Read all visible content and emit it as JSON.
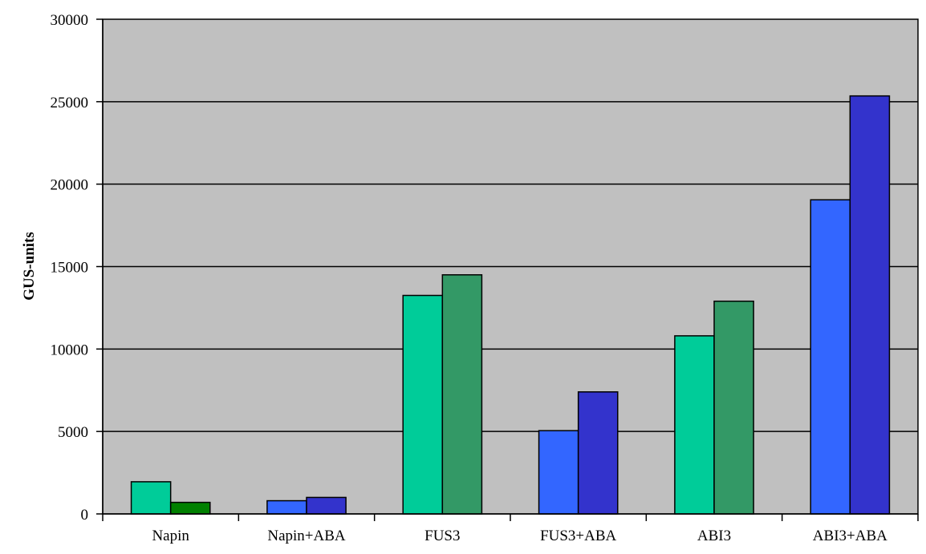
{
  "chart_data": {
    "type": "bar",
    "title": "",
    "xlabel": "",
    "ylabel": "GUS-units",
    "ylim": [
      0,
      30000
    ],
    "yticks": [
      0,
      5000,
      10000,
      15000,
      20000,
      25000,
      30000
    ],
    "grid": true,
    "legend": "none",
    "plot_background": "#c0c0c0",
    "categories": [
      "Napin",
      "Napin+ABA",
      "FUS3",
      "FUS3+ABA",
      "ABI3",
      "ABI3+ABA"
    ],
    "series": [
      {
        "values": [
          1950,
          800,
          13250,
          5050,
          10800,
          19050
        ]
      },
      {
        "values": [
          700,
          1000,
          14500,
          7400,
          12900,
          25350
        ]
      }
    ],
    "bar_colors": [
      [
        "#00cc99",
        "#008000"
      ],
      [
        "#3366ff",
        "#3333cc"
      ],
      [
        "#00cc99",
        "#339966"
      ],
      [
        "#3366ff",
        "#3333cc"
      ],
      [
        "#00cc99",
        "#339966"
      ],
      [
        "#3366ff",
        "#3333cc"
      ]
    ]
  }
}
